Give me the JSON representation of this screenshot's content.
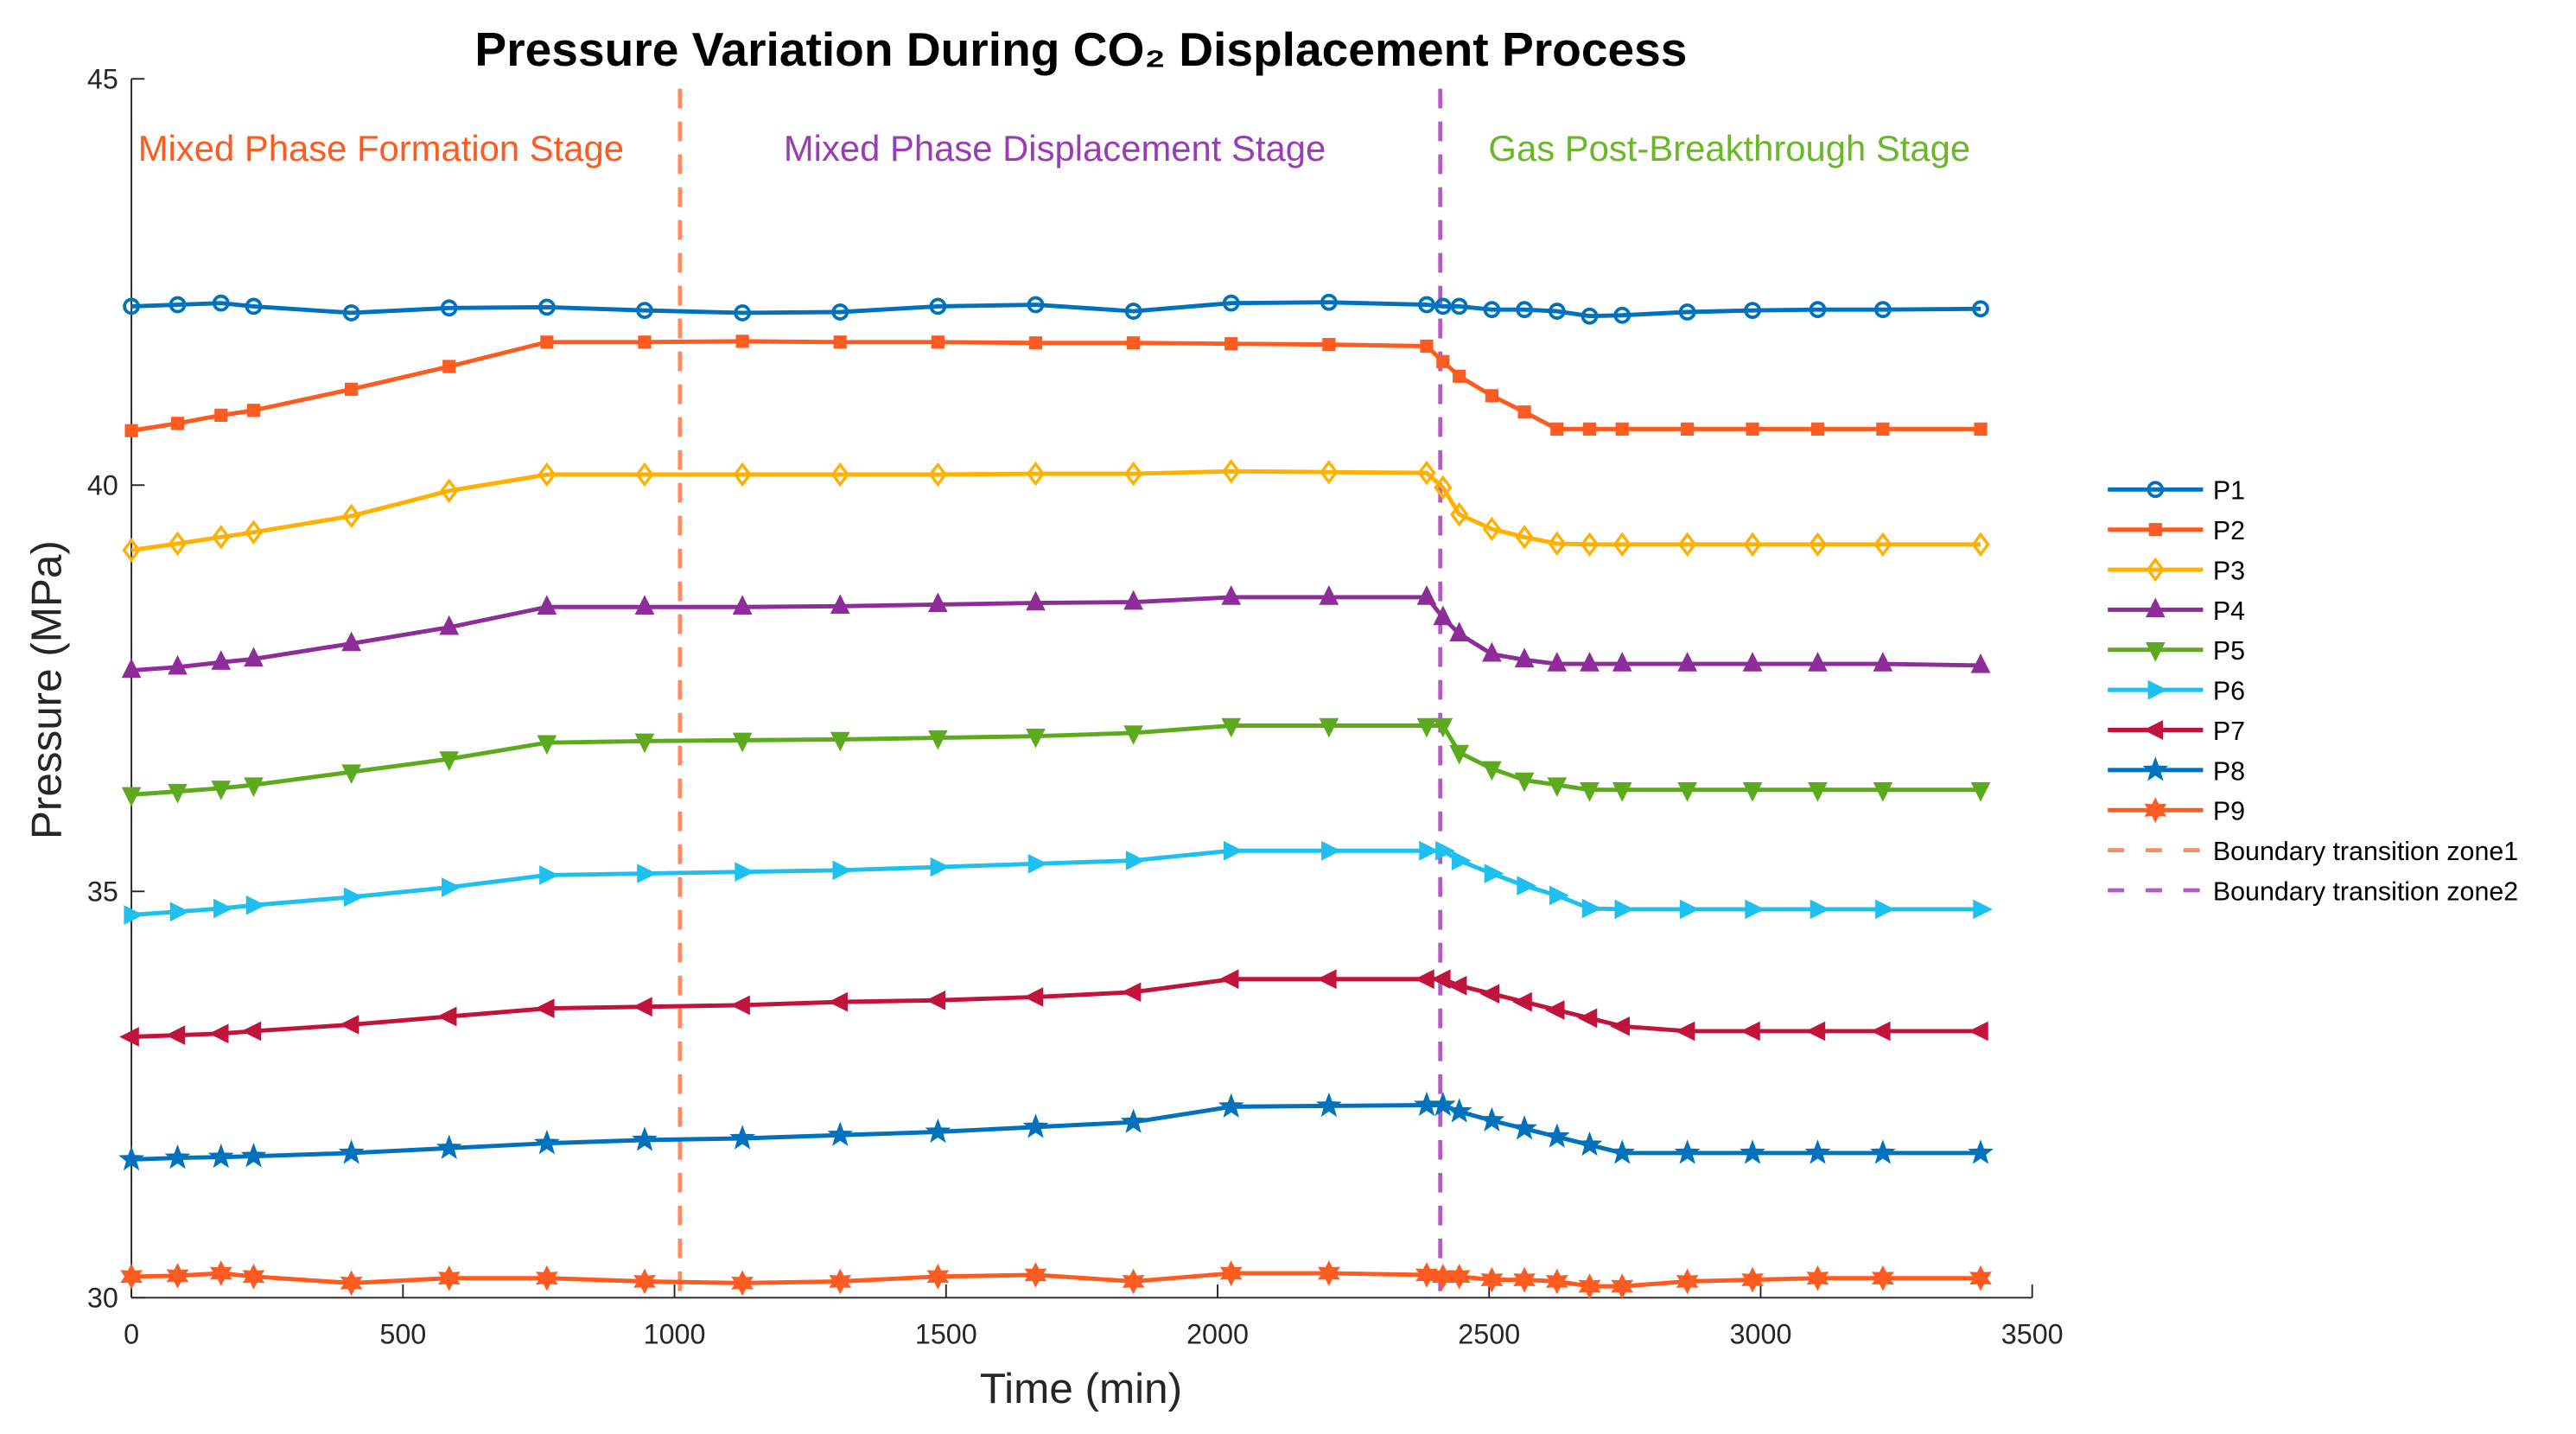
{
  "chart_data": {
    "type": "line",
    "title": "Pressure Variation During CO₂ Displacement Process",
    "xlabel": "Time (min)",
    "ylabel": "Pressure (MPa)",
    "xlim": [
      0,
      3500
    ],
    "ylim": [
      30,
      45
    ],
    "xticks": [
      0,
      500,
      1000,
      1500,
      2000,
      2500,
      3000,
      3500
    ],
    "yticks": [
      30,
      35,
      40,
      45
    ],
    "grid": false,
    "legend_position": "right",
    "x": [
      0,
      85,
      165,
      225,
      405,
      585,
      765,
      945,
      1125,
      1305,
      1485,
      1665,
      1845,
      2025,
      2205,
      2385,
      2415,
      2445,
      2505,
      2565,
      2625,
      2685,
      2745,
      2865,
      2985,
      3105,
      3225,
      3405
    ],
    "series": [
      {
        "name": "P1",
        "color": "#0072BD",
        "marker": "circle",
        "values": [
          42.2,
          42.22,
          42.24,
          42.2,
          42.12,
          42.18,
          42.19,
          42.15,
          42.12,
          42.13,
          42.2,
          42.22,
          42.14,
          42.24,
          42.25,
          42.22,
          42.2,
          42.2,
          42.16,
          42.16,
          42.14,
          42.08,
          42.09,
          42.13,
          42.15,
          42.16,
          42.16,
          42.17
        ]
      },
      {
        "name": "P2",
        "color": "#FF5A1F",
        "marker": "square",
        "values": [
          40.67,
          40.76,
          40.86,
          40.92,
          41.18,
          41.46,
          41.76,
          41.76,
          41.77,
          41.76,
          41.76,
          41.75,
          41.75,
          41.74,
          41.73,
          41.71,
          41.52,
          41.34,
          41.1,
          40.9,
          40.69,
          40.69,
          40.69,
          40.69,
          40.69,
          40.69,
          40.69,
          40.69
        ]
      },
      {
        "name": "P3",
        "color": "#FFB000",
        "marker": "diamond",
        "values": [
          39.2,
          39.28,
          39.36,
          39.42,
          39.62,
          39.93,
          40.13,
          40.13,
          40.13,
          40.13,
          40.13,
          40.14,
          40.14,
          40.17,
          40.16,
          40.15,
          39.97,
          39.64,
          39.46,
          39.36,
          39.28,
          39.27,
          39.27,
          39.27,
          39.27,
          39.27,
          39.27,
          39.27
        ]
      },
      {
        "name": "P4",
        "color": "#8E2C9A",
        "marker": "triangle-up",
        "values": [
          37.72,
          37.76,
          37.82,
          37.86,
          38.05,
          38.25,
          38.5,
          38.5,
          38.5,
          38.51,
          38.53,
          38.55,
          38.56,
          38.62,
          38.62,
          38.62,
          38.37,
          38.17,
          37.92,
          37.85,
          37.8,
          37.8,
          37.8,
          37.8,
          37.8,
          37.8,
          37.8,
          37.78
        ]
      },
      {
        "name": "P5",
        "color": "#5DAA1E",
        "marker": "triangle-down",
        "values": [
          36.19,
          36.23,
          36.27,
          36.31,
          36.47,
          36.63,
          36.83,
          36.85,
          36.86,
          36.87,
          36.89,
          36.91,
          36.95,
          37.04,
          37.04,
          37.04,
          37.04,
          36.71,
          36.51,
          36.37,
          36.31,
          36.25,
          36.25,
          36.25,
          36.25,
          36.25,
          36.25,
          36.25
        ]
      },
      {
        "name": "P6",
        "color": "#1EC0F0",
        "marker": "triangle-right",
        "values": [
          34.71,
          34.75,
          34.79,
          34.83,
          34.93,
          35.05,
          35.2,
          35.22,
          35.24,
          35.26,
          35.3,
          35.34,
          35.38,
          35.5,
          35.5,
          35.5,
          35.5,
          35.38,
          35.22,
          35.07,
          34.95,
          34.79,
          34.78,
          34.78,
          34.78,
          34.78,
          34.78,
          34.78
        ]
      },
      {
        "name": "P7",
        "color": "#C0143C",
        "marker": "triangle-left",
        "values": [
          33.21,
          33.23,
          33.25,
          33.28,
          33.36,
          33.46,
          33.56,
          33.58,
          33.6,
          33.64,
          33.66,
          33.7,
          33.76,
          33.92,
          33.92,
          33.92,
          33.92,
          33.84,
          33.74,
          33.64,
          33.54,
          33.44,
          33.34,
          33.28,
          33.28,
          33.28,
          33.28,
          33.28
        ]
      },
      {
        "name": "P8",
        "color": "#0072BD",
        "marker": "star",
        "values": [
          31.7,
          31.72,
          31.73,
          31.74,
          31.78,
          31.84,
          31.9,
          31.94,
          31.96,
          32.0,
          32.04,
          32.1,
          32.16,
          32.35,
          32.36,
          32.37,
          32.37,
          32.29,
          32.18,
          32.08,
          31.98,
          31.88,
          31.78,
          31.78,
          31.78,
          31.78,
          31.78,
          31.78
        ]
      },
      {
        "name": "P9",
        "color": "#FF5A1F",
        "marker": "hexagram",
        "values": [
          30.26,
          30.27,
          30.3,
          30.26,
          30.18,
          30.24,
          30.24,
          30.2,
          30.18,
          30.2,
          30.26,
          30.28,
          30.2,
          30.3,
          30.3,
          30.28,
          30.26,
          30.26,
          30.22,
          30.22,
          30.2,
          30.14,
          30.14,
          30.2,
          30.22,
          30.24,
          30.24,
          30.24
        ]
      }
    ],
    "boundaries": [
      {
        "name": "Boundary transition zone1",
        "x": 1010,
        "color": "#FF8C60"
      },
      {
        "name": "Boundary transition zone2",
        "x": 2410,
        "color": "#B05CC0"
      }
    ],
    "annotations": [
      {
        "text": "Mixed Phase Formation Stage",
        "color": "#FF5A1F"
      },
      {
        "text": "Mixed Phase Displacement Stage",
        "color": "#9A3DB5"
      },
      {
        "text": "Gas Post-Breakthrough Stage",
        "color": "#6AB82A"
      }
    ]
  }
}
